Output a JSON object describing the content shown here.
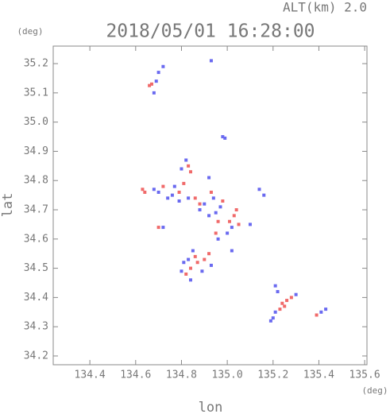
{
  "chart_data": {
    "type": "scatter",
    "title": "2018/05/01 16:28:00",
    "annotation": "ALT(km) 2.0",
    "y_unit": "(deg)",
    "x_unit": "(deg)",
    "xlabel": "lon",
    "ylabel": "lat",
    "xlim": [
      134.24,
      135.61
    ],
    "ylim": [
      34.17,
      35.26
    ],
    "xticks": [
      134.4,
      134.6,
      134.8,
      {
        "value": 135.0,
        "label": "135.0"
      },
      135.2,
      135.4,
      135.6
    ],
    "yticks": [
      34.2,
      34.3,
      34.4,
      34.5,
      34.6,
      34.7,
      34.8,
      34.9,
      {
        "value": 35.0,
        "label": "35.0"
      },
      35.1,
      35.2
    ],
    "series": [
      {
        "color": "#f06a6a",
        "x": [
          134.66,
          134.67,
          134.83,
          134.84,
          134.81,
          134.79,
          134.63,
          134.64,
          134.72,
          134.86,
          134.98,
          135.03,
          135.04,
          135.01,
          134.96,
          134.88,
          134.7,
          134.86,
          134.87,
          134.84,
          134.9,
          134.92,
          134.82,
          135.24,
          135.26,
          135.25,
          135.28,
          135.23,
          135.39,
          134.95,
          135.05,
          134.93
        ],
        "y": [
          35.125,
          35.13,
          34.85,
          34.83,
          34.79,
          34.76,
          34.77,
          34.76,
          34.78,
          34.74,
          34.73,
          34.68,
          34.7,
          34.66,
          34.66,
          34.72,
          34.64,
          34.54,
          34.52,
          34.5,
          34.53,
          34.55,
          34.48,
          34.38,
          34.39,
          34.37,
          34.4,
          34.36,
          34.34,
          34.62,
          34.65,
          34.76
        ]
      },
      {
        "color": "#6a6af0",
        "x": [
          134.69,
          134.7,
          134.72,
          134.68,
          134.93,
          134.98,
          134.99,
          134.92,
          134.8,
          134.82,
          134.77,
          134.76,
          134.79,
          134.68,
          134.7,
          134.74,
          134.83,
          134.9,
          134.94,
          134.97,
          134.92,
          134.95,
          135.02,
          135.0,
          134.96,
          134.72,
          135.16,
          135.14,
          135.1,
          134.85,
          134.83,
          134.8,
          134.84,
          134.89,
          134.93,
          134.81,
          135.21,
          135.22,
          135.2,
          135.19,
          135.21,
          135.3,
          135.43,
          135.41,
          134.88,
          135.02
        ],
        "y": [
          35.14,
          35.17,
          35.19,
          35.1,
          35.21,
          34.95,
          34.945,
          34.81,
          34.84,
          34.87,
          34.78,
          34.75,
          34.73,
          34.77,
          34.76,
          34.74,
          34.74,
          34.72,
          34.74,
          34.71,
          34.68,
          34.69,
          34.64,
          34.62,
          34.6,
          34.64,
          34.75,
          34.77,
          34.65,
          34.56,
          34.53,
          34.49,
          34.46,
          34.49,
          34.51,
          34.52,
          34.44,
          34.42,
          34.33,
          34.32,
          34.35,
          34.41,
          34.36,
          34.35,
          34.7,
          34.56
        ]
      }
    ]
  }
}
